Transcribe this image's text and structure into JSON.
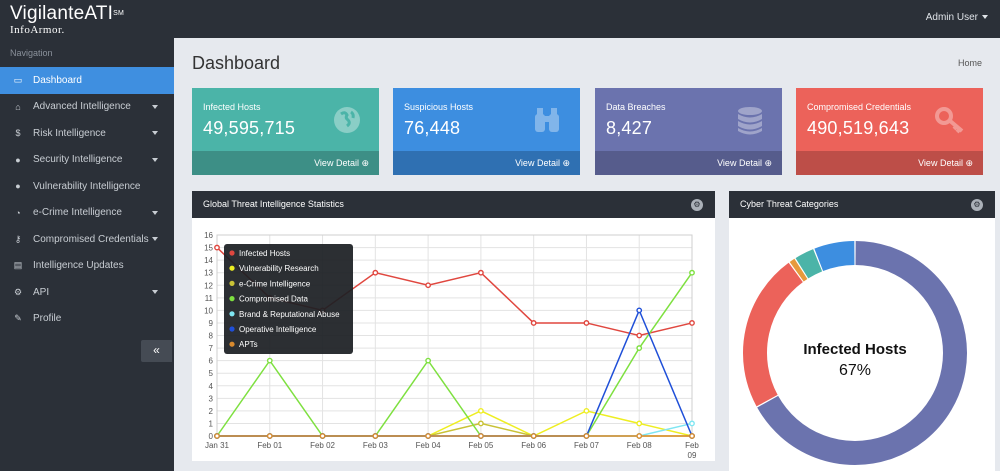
{
  "brand": {
    "name": "VigilanteATI",
    "tm": "SM",
    "sub": "InfoArmor."
  },
  "user": {
    "label": "Admin User"
  },
  "sidebar": {
    "heading": "Navigation",
    "items": [
      {
        "label": "Dashboard",
        "icon": "laptop-icon",
        "active": true,
        "dropdown": false
      },
      {
        "label": "Advanced Intelligence",
        "icon": "inbox-icon",
        "dropdown": true
      },
      {
        "label": "Risk Intelligence",
        "icon": "dollar-icon",
        "dropdown": true
      },
      {
        "label": "Security Intelligence",
        "icon": "globe-icon",
        "dropdown": true
      },
      {
        "label": "Vulnerability Intelligence",
        "icon": "globe-icon",
        "dropdown": false
      },
      {
        "label": "e-Crime Intelligence",
        "icon": "chat-icon",
        "dropdown": true
      },
      {
        "label": "Compromised Credentials",
        "icon": "key-icon",
        "dropdown": true
      },
      {
        "label": "Intelligence Updates",
        "icon": "newspaper-icon",
        "dropdown": false
      },
      {
        "label": "API",
        "icon": "cogs-icon",
        "dropdown": true
      },
      {
        "label": "Profile",
        "icon": "edit-icon",
        "dropdown": false
      }
    ],
    "collapse_label": "«"
  },
  "page": {
    "title": "Dashboard",
    "breadcrumb": "Home"
  },
  "cards": [
    {
      "label": "Infected Hosts",
      "value": "49,595,715",
      "detail": "View Detail ⊕",
      "icon": "globe-icon"
    },
    {
      "label": "Suspicious Hosts",
      "value": "76,448",
      "detail": "View Detail ⊕",
      "icon": "binoculars-icon"
    },
    {
      "label": "Data Breaches",
      "value": "8,427",
      "detail": "View Detail ⊕",
      "icon": "database-icon"
    },
    {
      "label": "Compromised Credentials",
      "value": "490,519,643",
      "detail": "View Detail ⊕",
      "icon": "key-icon"
    }
  ],
  "panels": {
    "stats_title": "Global Threat Intelligence Statistics",
    "categories_title": "Cyber Threat Categories"
  },
  "chart_data": [
    {
      "type": "line",
      "title": "Global Threat Intelligence Statistics",
      "x": [
        "Jan 31",
        "Feb 01",
        "Feb 02",
        "Feb 03",
        "Feb 04",
        "Feb 05",
        "Feb 06",
        "Feb 07",
        "Feb 08",
        "Feb 09"
      ],
      "ylim": [
        0,
        16
      ],
      "yticks": [
        0,
        1,
        2,
        3,
        4,
        5,
        6,
        7,
        8,
        9,
        10,
        11,
        12,
        13,
        14,
        15,
        16
      ],
      "grid": true,
      "legend_position": "top-left",
      "series": [
        {
          "name": "Infected Hosts",
          "color": "#e0473f",
          "values": [
            15,
            11,
            10,
            13,
            12,
            13,
            9,
            9,
            8,
            9
          ]
        },
        {
          "name": "Vulnerability Research",
          "color": "#eeee22",
          "values": [
            0,
            0,
            0,
            0,
            0,
            2,
            0,
            2,
            1,
            0
          ]
        },
        {
          "name": "e-Crime Intelligence",
          "color": "#c9c236",
          "values": [
            0,
            0,
            0,
            0,
            0,
            1,
            0,
            0,
            0,
            0
          ]
        },
        {
          "name": "Compromised Data",
          "color": "#7ee040",
          "values": [
            0,
            6,
            0,
            0,
            6,
            0,
            0,
            0,
            7,
            13
          ]
        },
        {
          "name": "Brand & Reputational Abuse",
          "color": "#7fe6f2",
          "values": [
            0,
            0,
            0,
            0,
            0,
            0,
            0,
            0,
            0,
            1
          ]
        },
        {
          "name": "Operative Intelligence",
          "color": "#1f4fd8",
          "values": [
            0,
            0,
            0,
            0,
            0,
            0,
            0,
            0,
            10,
            0
          ]
        },
        {
          "name": "APTs",
          "color": "#d98a2e",
          "values": [
            0,
            0,
            0,
            0,
            0,
            0,
            0,
            0,
            0,
            0
          ]
        }
      ]
    },
    {
      "type": "pie",
      "title": "Cyber Threat Categories",
      "center_label": "Infected Hosts",
      "center_value": "67%",
      "slices": [
        {
          "value": 67,
          "color": "#6b73ae"
        },
        {
          "value": 23,
          "color": "#ec625a"
        },
        {
          "value": 1,
          "color": "#e79a3c"
        },
        {
          "value": 3,
          "color": "#4bb4a8"
        },
        {
          "value": 6,
          "color": "#3d8ee0"
        }
      ]
    }
  ]
}
